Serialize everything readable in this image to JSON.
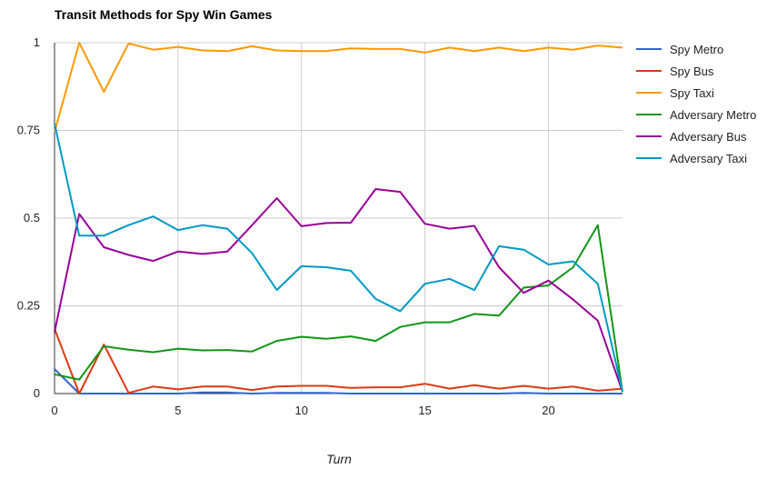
{
  "chart_data": {
    "type": "line",
    "title": "Transit Methods for Spy Win Games",
    "xlabel": "Turn",
    "ylabel": "",
    "xlim": [
      0,
      23
    ],
    "ylim": [
      0,
      1
    ],
    "x_ticks": [
      0,
      5,
      10,
      15,
      20
    ],
    "y_ticks": [
      0,
      0.25,
      0.5,
      0.75,
      1
    ],
    "y_tick_labels": [
      "0",
      "0.25",
      "0.5",
      "0.75",
      "1"
    ],
    "grid": true,
    "legend_position": "right",
    "x": [
      0,
      1,
      2,
      3,
      4,
      5,
      6,
      7,
      8,
      9,
      10,
      11,
      12,
      13,
      14,
      15,
      16,
      17,
      18,
      19,
      20,
      21,
      22,
      23
    ],
    "series": [
      {
        "name": "Spy Metro",
        "color": "#3366cc",
        "values": [
          0.07,
          0.0,
          0.0,
          0.0,
          0.0,
          0.0,
          0.003,
          0.003,
          0.0,
          0.002,
          0.002,
          0.002,
          0.0,
          0.0,
          0.0,
          0.0,
          0.0,
          0.0,
          0.0,
          0.002,
          0.0,
          0.0,
          0.0,
          0.0
        ]
      },
      {
        "name": "Spy Bus",
        "color": "#dc3912",
        "values": [
          0.185,
          0.0,
          0.14,
          0.002,
          0.02,
          0.012,
          0.02,
          0.02,
          0.01,
          0.02,
          0.022,
          0.022,
          0.016,
          0.018,
          0.018,
          0.028,
          0.014,
          0.024,
          0.014,
          0.022,
          0.014,
          0.02,
          0.008,
          0.014
        ]
      },
      {
        "name": "Spy Taxi",
        "color": "#ff9900",
        "values": [
          0.745,
          1.0,
          0.86,
          0.998,
          0.98,
          0.988,
          0.978,
          0.976,
          0.99,
          0.978,
          0.976,
          0.976,
          0.984,
          0.982,
          0.982,
          0.972,
          0.986,
          0.976,
          0.986,
          0.976,
          0.986,
          0.98,
          0.992,
          0.986
        ]
      },
      {
        "name": "Adversary Metro",
        "color": "#109618",
        "values": [
          0.055,
          0.04,
          0.135,
          0.125,
          0.118,
          0.128,
          0.123,
          0.124,
          0.12,
          0.15,
          0.162,
          0.156,
          0.163,
          0.15,
          0.19,
          0.203,
          0.203,
          0.227,
          0.222,
          0.302,
          0.308,
          0.36,
          0.48,
          0.005
        ]
      },
      {
        "name": "Adversary Bus",
        "color": "#990099",
        "values": [
          0.175,
          0.512,
          0.417,
          0.395,
          0.378,
          0.405,
          0.398,
          0.405,
          0.48,
          0.557,
          0.477,
          0.486,
          0.487,
          0.583,
          0.575,
          0.484,
          0.47,
          0.478,
          0.36,
          0.287,
          0.322,
          0.268,
          0.208,
          0.005
        ]
      },
      {
        "name": "Adversary Taxi",
        "color": "#0099c6",
        "values": [
          0.77,
          0.45,
          0.45,
          0.48,
          0.505,
          0.466,
          0.48,
          0.47,
          0.4,
          0.295,
          0.363,
          0.36,
          0.35,
          0.27,
          0.235,
          0.313,
          0.327,
          0.295,
          0.42,
          0.41,
          0.368,
          0.377,
          0.313,
          0.005
        ]
      }
    ]
  }
}
